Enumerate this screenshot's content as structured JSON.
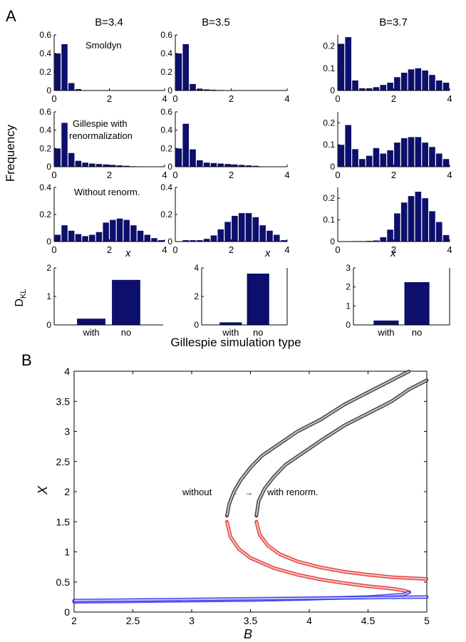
{
  "panel_labels": {
    "a": "A",
    "b": "B"
  },
  "panel_a": {
    "column_titles": [
      "B=3.4",
      "B=3.5",
      "B=3.7"
    ],
    "row_labels": [
      "Smoldyn",
      "Gillespie with",
      "renormalization",
      "Without renorm."
    ],
    "ylabel": "Frequency",
    "xlabel": "x",
    "dkl_ylabel_main": "D",
    "dkl_ylabel_sub": "KL",
    "dkl_xlabel": "Gillespie simulation type"
  },
  "panel_b": {
    "xlabel": "B",
    "ylabel": "X",
    "annotation_left": "without",
    "annotation_right": "with renorm."
  },
  "colors": {
    "bar": "#0c0f6b",
    "upper_branch": "#222222",
    "middle_branch": "#e02020",
    "lower_branch": "#2a2af0"
  },
  "chart_data": [
    {
      "id": "hist-3.4-smoldyn",
      "type": "bar",
      "x": [
        0,
        0.25,
        0.5,
        0.75,
        1.0
      ],
      "values": [
        0.4,
        0.5,
        0.08,
        0.015,
        0.003
      ],
      "bin_width": 0.25,
      "xlim": [
        0,
        4
      ],
      "ylim": [
        0,
        0.6
      ],
      "xticks": [
        0,
        2,
        4
      ],
      "yticks": [
        0,
        0.2,
        0.4,
        0.6
      ],
      "ytick_labels": [
        "0",
        "0.2",
        "0.4",
        "0.6"
      ]
    },
    {
      "id": "hist-3.5-smoldyn",
      "type": "bar",
      "x": [
        0,
        0.25,
        0.5,
        0.75,
        1.0,
        1.25,
        1.5,
        1.75
      ],
      "values": [
        0.4,
        0.5,
        0.07,
        0.02,
        0.012,
        0.008,
        0.005,
        0.003
      ],
      "bin_width": 0.25,
      "xlim": [
        0,
        4
      ],
      "ylim": [
        0,
        0.6
      ],
      "xticks": [
        0,
        2,
        4
      ],
      "yticks": [
        0,
        0.2,
        0.4,
        0.6
      ],
      "ytick_labels": [
        "0",
        "0.2",
        "0.4",
        "0.6"
      ]
    },
    {
      "id": "hist-3.7-smoldyn",
      "type": "bar",
      "x": [
        0,
        0.25,
        0.5,
        0.75,
        1.0,
        1.25,
        1.5,
        1.75,
        2.0,
        2.25,
        2.5,
        2.75,
        3.0,
        3.25,
        3.5,
        3.75
      ],
      "values": [
        0.21,
        0.24,
        0.045,
        0.01,
        0.01,
        0.015,
        0.025,
        0.035,
        0.06,
        0.08,
        0.095,
        0.1,
        0.09,
        0.07,
        0.045,
        0.035
      ],
      "bin_width": 0.25,
      "xlim": [
        0,
        4
      ],
      "ylim": [
        0,
        0.25
      ],
      "xticks": [
        0,
        2,
        4
      ],
      "yticks": [
        0,
        0.1,
        0.2
      ],
      "ytick_labels": [
        "0",
        "0.1",
        "0.2"
      ]
    },
    {
      "id": "hist-3.4-gillespie",
      "type": "bar",
      "x": [
        0,
        0.25,
        0.5,
        0.75,
        1.0,
        1.25,
        1.5,
        1.75,
        2.0,
        2.25,
        2.5,
        2.75
      ],
      "values": [
        0.2,
        0.48,
        0.15,
        0.065,
        0.045,
        0.035,
        0.03,
        0.025,
        0.02,
        0.015,
        0.01,
        0.005
      ],
      "bin_width": 0.25,
      "xlim": [
        0,
        4
      ],
      "ylim": [
        0,
        0.6
      ],
      "xticks": [
        0,
        2,
        4
      ],
      "yticks": [
        0,
        0.2,
        0.4,
        0.6
      ],
      "ytick_labels": [
        "0",
        "0.2",
        "0.4",
        "0.6"
      ]
    },
    {
      "id": "hist-3.5-gillespie",
      "type": "bar",
      "x": [
        0,
        0.25,
        0.5,
        0.75,
        1.0,
        1.25,
        1.5,
        1.75,
        2.0,
        2.25,
        2.5,
        2.75
      ],
      "values": [
        0.2,
        0.47,
        0.19,
        0.07,
        0.045,
        0.04,
        0.035,
        0.03,
        0.025,
        0.02,
        0.015,
        0.01
      ],
      "bin_width": 0.25,
      "xlim": [
        0,
        4
      ],
      "ylim": [
        0,
        0.6
      ],
      "xticks": [
        0,
        2,
        4
      ],
      "yticks": [
        0,
        0.2,
        0.4,
        0.6
      ],
      "ytick_labels": [
        "0",
        "0.2",
        "0.4",
        "0.6"
      ]
    },
    {
      "id": "hist-3.7-gillespie",
      "type": "bar",
      "x": [
        0,
        0.25,
        0.5,
        0.75,
        1.0,
        1.25,
        1.5,
        1.75,
        2.0,
        2.25,
        2.5,
        2.75,
        3.0,
        3.25,
        3.5,
        3.75
      ],
      "values": [
        0.1,
        0.19,
        0.08,
        0.035,
        0.05,
        0.085,
        0.06,
        0.075,
        0.11,
        0.13,
        0.135,
        0.135,
        0.11,
        0.09,
        0.06,
        0.035
      ],
      "bin_width": 0.25,
      "xlim": [
        0,
        4
      ],
      "ylim": [
        0,
        0.25
      ],
      "xticks": [
        0,
        2,
        4
      ],
      "yticks": [
        0,
        0.1,
        0.2
      ],
      "ytick_labels": [
        "0",
        "0.1",
        "0.2"
      ]
    },
    {
      "id": "hist-3.4-without",
      "type": "bar",
      "x": [
        0,
        0.25,
        0.5,
        0.75,
        1.0,
        1.25,
        1.5,
        1.75,
        2.0,
        2.25,
        2.5,
        2.75,
        3.0,
        3.25,
        3.5,
        3.75
      ],
      "values": [
        0.05,
        0.12,
        0.08,
        0.055,
        0.04,
        0.05,
        0.07,
        0.14,
        0.16,
        0.17,
        0.16,
        0.12,
        0.08,
        0.05,
        0.025,
        0.01
      ],
      "bin_width": 0.25,
      "xlim": [
        0,
        4
      ],
      "ylim": [
        0,
        0.4
      ],
      "xticks": [
        0,
        2,
        4
      ],
      "yticks": [
        0,
        0.2,
        0.4
      ],
      "ytick_labels": [
        "0",
        "0.2",
        "0.4"
      ]
    },
    {
      "id": "hist-3.5-without",
      "type": "bar",
      "x": [
        0.25,
        0.5,
        0.75,
        1.0,
        1.25,
        1.5,
        1.75,
        2.0,
        2.25,
        2.5,
        2.75,
        3.0,
        3.25,
        3.5,
        3.75
      ],
      "values": [
        0.01,
        0.01,
        0.01,
        0.02,
        0.045,
        0.09,
        0.145,
        0.19,
        0.21,
        0.21,
        0.18,
        0.12,
        0.08,
        0.05,
        0.01
      ],
      "bin_width": 0.25,
      "xlim": [
        0,
        4
      ],
      "ylim": [
        0,
        0.4
      ],
      "xticks": [
        0,
        2,
        4
      ],
      "yticks": [
        0,
        0.2,
        0.4
      ],
      "ytick_labels": [
        "0",
        "0.2",
        "0.4"
      ]
    },
    {
      "id": "hist-3.7-without",
      "type": "bar",
      "x": [
        0.5,
        0.75,
        1.0,
        1.25,
        1.5,
        1.75,
        2.0,
        2.25,
        2.5,
        2.75,
        3.0,
        3.25,
        3.5,
        3.75
      ],
      "values": [
        0.002,
        0.002,
        0.003,
        0.005,
        0.02,
        0.055,
        0.13,
        0.18,
        0.21,
        0.23,
        0.2,
        0.14,
        0.09,
        0.03
      ],
      "bin_width": 0.25,
      "xlim": [
        0,
        4
      ],
      "ylim": [
        0,
        0.25
      ],
      "xticks": [
        0,
        2,
        4
      ],
      "yticks": [
        0,
        0.1,
        0.2
      ],
      "ytick_labels": [
        "0",
        "0.1",
        "0.2"
      ]
    },
    {
      "id": "dkl-3.4",
      "type": "bar",
      "categories": [
        "with",
        "no"
      ],
      "values": [
        0.22,
        1.58
      ],
      "ylim": [
        0,
        2
      ],
      "yticks": [
        0,
        1,
        2
      ],
      "ytick_labels": [
        "0",
        "1",
        "2"
      ]
    },
    {
      "id": "dkl-3.5",
      "type": "bar",
      "categories": [
        "with",
        "no"
      ],
      "values": [
        0.18,
        3.6
      ],
      "ylim": [
        0,
        4
      ],
      "yticks": [
        0,
        2,
        4
      ],
      "ytick_labels": [
        "0",
        "2",
        "4"
      ]
    },
    {
      "id": "dkl-3.7",
      "type": "bar",
      "categories": [
        "with",
        "no"
      ],
      "values": [
        0.23,
        2.25
      ],
      "ylim": [
        0,
        3
      ],
      "yticks": [
        0,
        1,
        2,
        3
      ],
      "ytick_labels": [
        "0",
        "1",
        "2",
        "3"
      ]
    },
    {
      "id": "bifurcation",
      "type": "line",
      "title": "",
      "xlabel": "B",
      "ylabel": "X",
      "xlim": [
        2,
        5
      ],
      "ylim": [
        0,
        4
      ],
      "xticks": [
        2,
        2.5,
        3,
        3.5,
        4,
        4.5,
        5
      ],
      "xtick_labels": [
        "2",
        "2.5",
        "3",
        "3.5",
        "4",
        "4.5",
        "5"
      ],
      "yticks": [
        0,
        0.5,
        1,
        1.5,
        2,
        2.5,
        3,
        3.5,
        4
      ],
      "ytick_labels": [
        "0",
        "0.5",
        "1",
        "1.5",
        "2",
        "2.5",
        "3",
        "3.5",
        "4"
      ],
      "series": [
        {
          "name": "without (upper, stable)",
          "color": "upper_branch",
          "x": [
            3.3,
            3.32,
            3.36,
            3.42,
            3.5,
            3.6,
            3.75,
            3.9,
            4.1,
            4.3,
            4.5,
            4.7,
            4.85
          ],
          "y": [
            1.6,
            1.8,
            2.0,
            2.2,
            2.4,
            2.6,
            2.8,
            3.0,
            3.2,
            3.45,
            3.65,
            3.85,
            4.0
          ]
        },
        {
          "name": "with renorm. (upper, stable)",
          "color": "upper_branch",
          "x": [
            3.55,
            3.57,
            3.62,
            3.7,
            3.8,
            3.95,
            4.1,
            4.3,
            4.5,
            4.7,
            4.85,
            5.0
          ],
          "y": [
            1.6,
            1.85,
            2.05,
            2.25,
            2.45,
            2.65,
            2.85,
            3.1,
            3.3,
            3.5,
            3.7,
            3.85
          ]
        },
        {
          "name": "without (middle, unstable)",
          "color": "middle_branch",
          "x": [
            3.3,
            3.33,
            3.4,
            3.5,
            3.7,
            3.9,
            4.1,
            4.3,
            4.5,
            4.7,
            4.8,
            4.85
          ],
          "y": [
            1.5,
            1.25,
            1.05,
            0.9,
            0.73,
            0.62,
            0.54,
            0.48,
            0.43,
            0.39,
            0.36,
            0.33
          ]
        },
        {
          "name": "with renorm. (middle, unstable)",
          "color": "middle_branch",
          "x": [
            3.55,
            3.58,
            3.65,
            3.75,
            3.9,
            4.1,
            4.3,
            4.5,
            4.7,
            4.9,
            5.0
          ],
          "y": [
            1.5,
            1.28,
            1.1,
            0.96,
            0.84,
            0.74,
            0.67,
            0.62,
            0.58,
            0.56,
            0.55
          ]
        },
        {
          "name": "without (lower, stable)",
          "color": "lower_branch",
          "x": [
            2.0,
            2.5,
            3.0,
            3.5,
            4.0,
            4.5,
            4.8,
            4.85
          ],
          "y": [
            0.17,
            0.18,
            0.19,
            0.2,
            0.22,
            0.25,
            0.29,
            0.33
          ]
        },
        {
          "name": "with renorm. (lower, stable)",
          "color": "lower_branch",
          "x": [
            2.0,
            2.5,
            3.0,
            3.5,
            4.0,
            4.5,
            5.0
          ],
          "y": [
            0.19,
            0.2,
            0.21,
            0.22,
            0.23,
            0.24,
            0.25
          ]
        }
      ]
    }
  ]
}
